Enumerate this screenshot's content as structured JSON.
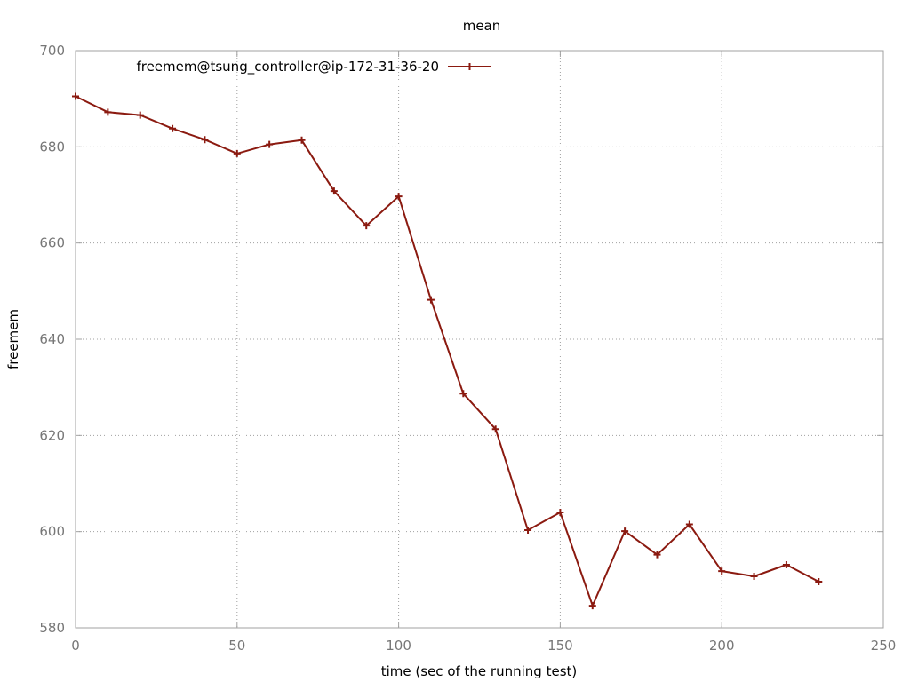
{
  "chart_data": {
    "type": "line",
    "title": "mean",
    "xlabel": "time (sec of the running test)",
    "ylabel": "freemem",
    "xlim": [
      0,
      250
    ],
    "ylim": [
      580,
      700
    ],
    "xticks": [
      0,
      50,
      100,
      150,
      200,
      250
    ],
    "yticks": [
      580,
      600,
      620,
      640,
      660,
      680,
      700
    ],
    "grid": true,
    "legend_position": "top-left",
    "series": [
      {
        "name": "freemem@tsung_controller@ip-172-31-36-20",
        "color": "#8b1a10",
        "marker": "plus",
        "x": [
          0,
          10,
          20,
          30,
          40,
          50,
          60,
          70,
          80,
          90,
          100,
          110,
          120,
          130,
          140,
          150,
          160,
          170,
          180,
          190,
          200,
          210,
          220,
          230
        ],
        "y": [
          690.5,
          687.2,
          686.6,
          683.8,
          681.5,
          678.6,
          680.5,
          681.4,
          670.8,
          663.6,
          669.7,
          648.2,
          628.7,
          621.3,
          600.3,
          604.0,
          584.6,
          600.1,
          595.2,
          601.5,
          591.8,
          590.7,
          593.1,
          589.6
        ]
      }
    ]
  }
}
